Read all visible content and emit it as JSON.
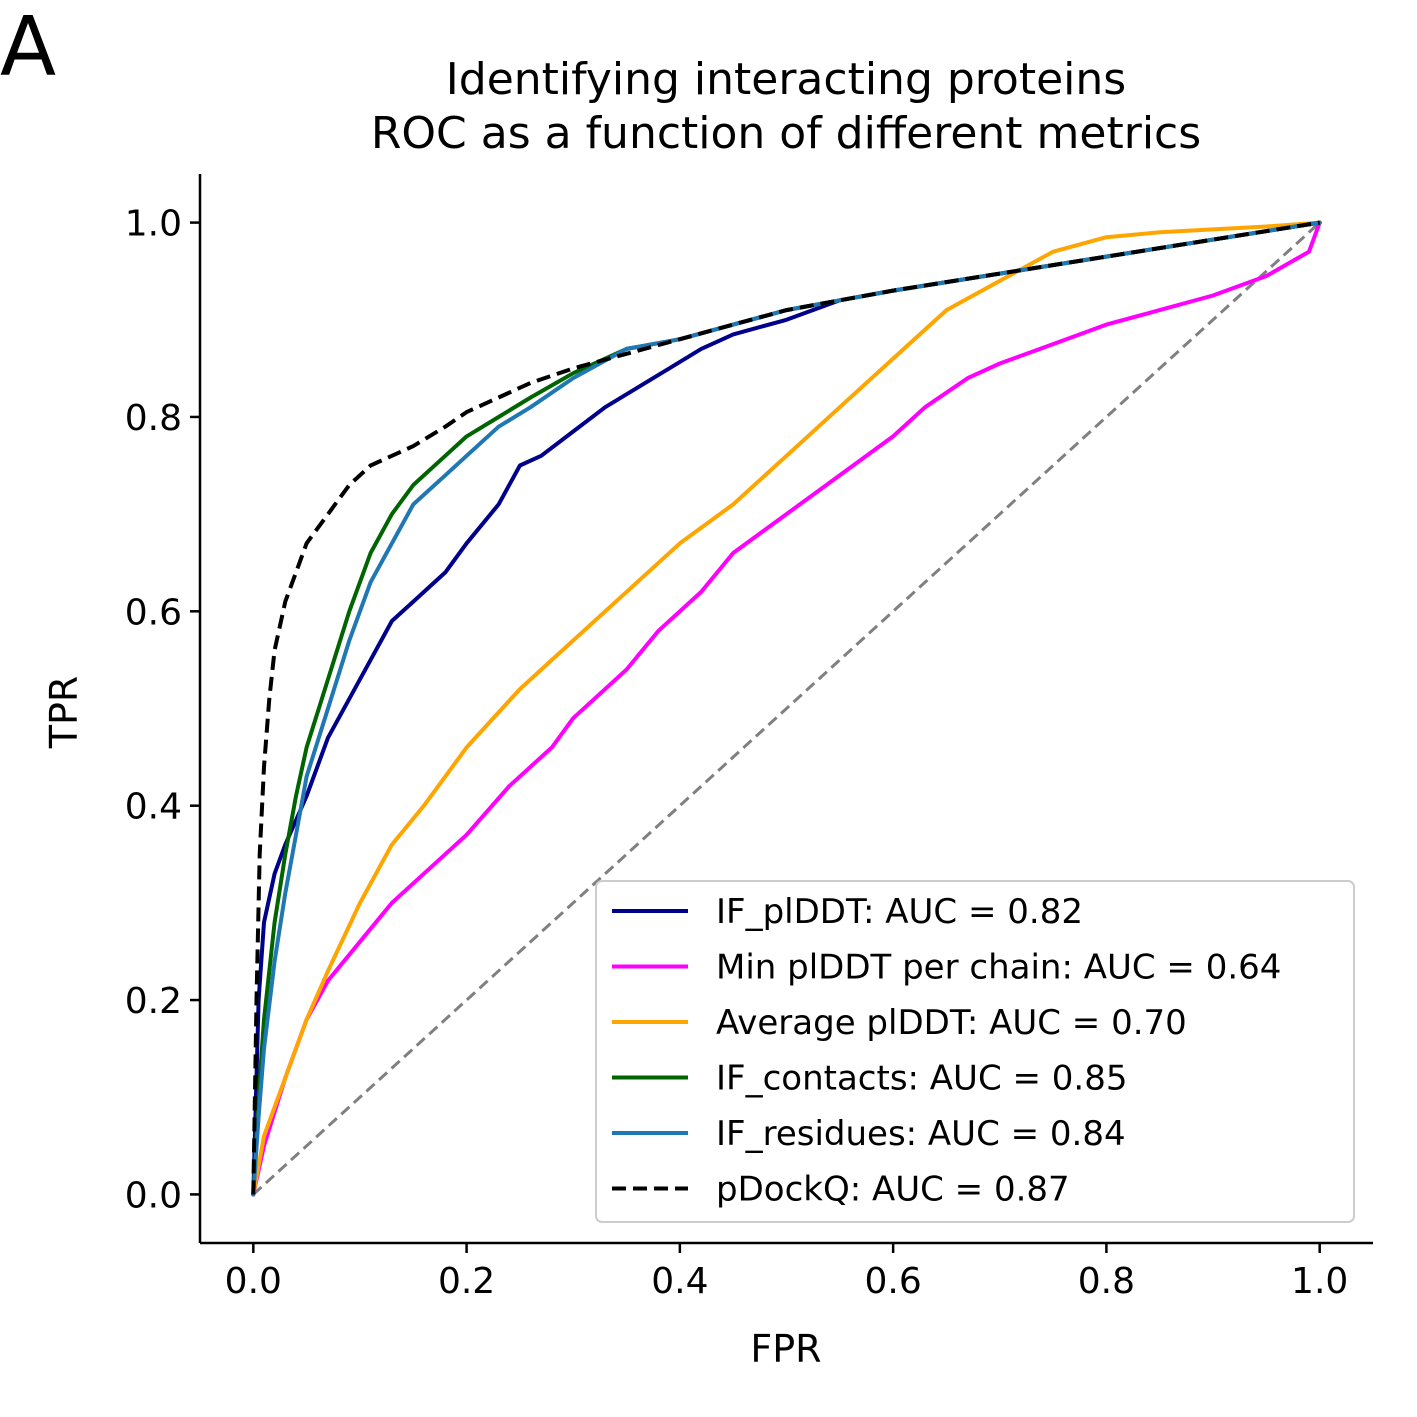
{
  "panel_label": "A",
  "chart_data": {
    "type": "line",
    "title_lines": [
      "Identifying interacting proteins",
      "ROC as a function of different metrics"
    ],
    "xlabel": "FPR",
    "ylabel": "TPR",
    "xlim": [
      -0.05,
      1.05
    ],
    "ylim": [
      -0.05,
      1.05
    ],
    "xticks": [
      0.0,
      0.2,
      0.4,
      0.6,
      0.8,
      1.0
    ],
    "yticks": [
      0.0,
      0.2,
      0.4,
      0.6,
      0.8,
      1.0
    ],
    "xtick_labels": [
      "0.0",
      "0.2",
      "0.4",
      "0.6",
      "0.8",
      "1.0"
    ],
    "ytick_labels": [
      "0.0",
      "0.2",
      "0.4",
      "0.6",
      "0.8",
      "1.0"
    ],
    "grid": false,
    "legend_position": "lower-right",
    "reference_line": {
      "x": [
        0,
        1
      ],
      "y": [
        0,
        1
      ],
      "color": "#808080",
      "style": "dashed"
    },
    "series": [
      {
        "name": "IF_plDDT: AUC = 0.82",
        "color": "#00008b",
        "style": "solid",
        "x": [
          0,
          0.005,
          0.01,
          0.02,
          0.03,
          0.05,
          0.07,
          0.09,
          0.11,
          0.13,
          0.15,
          0.18,
          0.2,
          0.23,
          0.25,
          0.27,
          0.3,
          0.33,
          0.36,
          0.39,
          0.42,
          0.45,
          0.5,
          0.55,
          0.6,
          1.0
        ],
        "y": [
          0,
          0.2,
          0.28,
          0.33,
          0.36,
          0.41,
          0.47,
          0.51,
          0.55,
          0.59,
          0.61,
          0.64,
          0.67,
          0.71,
          0.75,
          0.76,
          0.785,
          0.81,
          0.83,
          0.85,
          0.87,
          0.885,
          0.9,
          0.92,
          0.93,
          1.0
        ]
      },
      {
        "name": "Min plDDT per chain: AUC = 0.64",
        "color": "#ff00ff",
        "style": "solid",
        "x": [
          0,
          0.01,
          0.03,
          0.05,
          0.07,
          0.1,
          0.13,
          0.16,
          0.2,
          0.24,
          0.28,
          0.3,
          0.35,
          0.38,
          0.42,
          0.45,
          0.5,
          0.55,
          0.6,
          0.63,
          0.67,
          0.7,
          0.75,
          0.8,
          0.85,
          0.9,
          0.95,
          0.99,
          1.0
        ],
        "y": [
          0,
          0.05,
          0.12,
          0.18,
          0.22,
          0.26,
          0.3,
          0.33,
          0.37,
          0.42,
          0.46,
          0.49,
          0.54,
          0.58,
          0.62,
          0.66,
          0.7,
          0.74,
          0.78,
          0.81,
          0.84,
          0.855,
          0.875,
          0.895,
          0.91,
          0.925,
          0.945,
          0.97,
          1.0
        ]
      },
      {
        "name": "Average plDDT: AUC = 0.70",
        "color": "#ffa500",
        "style": "solid",
        "x": [
          0,
          0.01,
          0.03,
          0.05,
          0.07,
          0.1,
          0.13,
          0.16,
          0.2,
          0.25,
          0.28,
          0.32,
          0.36,
          0.4,
          0.45,
          0.5,
          0.55,
          0.6,
          0.65,
          0.7,
          0.75,
          0.8,
          0.85,
          0.9,
          0.95,
          1.0
        ],
        "y": [
          0,
          0.06,
          0.12,
          0.18,
          0.23,
          0.3,
          0.36,
          0.4,
          0.46,
          0.52,
          0.55,
          0.59,
          0.63,
          0.67,
          0.71,
          0.76,
          0.81,
          0.86,
          0.91,
          0.94,
          0.97,
          0.985,
          0.99,
          0.993,
          0.996,
          1.0
        ]
      },
      {
        "name": "IF_contacts: AUC = 0.85",
        "color": "#006400",
        "style": "solid",
        "x": [
          0,
          0.005,
          0.01,
          0.02,
          0.03,
          0.04,
          0.05,
          0.07,
          0.09,
          0.11,
          0.13,
          0.15,
          0.18,
          0.2,
          0.23,
          0.26,
          0.3,
          0.35,
          0.4,
          0.45,
          0.5,
          0.55,
          0.6,
          1.0
        ],
        "y": [
          0,
          0.1,
          0.18,
          0.28,
          0.35,
          0.41,
          0.46,
          0.53,
          0.6,
          0.66,
          0.7,
          0.73,
          0.76,
          0.78,
          0.8,
          0.82,
          0.845,
          0.87,
          0.88,
          0.895,
          0.91,
          0.92,
          0.93,
          1.0
        ]
      },
      {
        "name": "IF_residues: AUC = 0.84",
        "color": "#1f77b4",
        "style": "solid",
        "x": [
          0,
          0.005,
          0.01,
          0.02,
          0.03,
          0.04,
          0.05,
          0.07,
          0.09,
          0.11,
          0.13,
          0.15,
          0.18,
          0.2,
          0.23,
          0.26,
          0.3,
          0.35,
          0.4,
          0.45,
          0.5,
          0.55,
          0.6,
          1.0
        ],
        "y": [
          0,
          0.08,
          0.15,
          0.24,
          0.31,
          0.37,
          0.43,
          0.5,
          0.57,
          0.63,
          0.67,
          0.71,
          0.74,
          0.76,
          0.79,
          0.81,
          0.84,
          0.87,
          0.88,
          0.895,
          0.91,
          0.92,
          0.93,
          1.0
        ]
      },
      {
        "name": "pDockQ: AUC = 0.87",
        "color": "#000000",
        "style": "dashed",
        "x": [
          0,
          0.003,
          0.006,
          0.01,
          0.015,
          0.02,
          0.03,
          0.04,
          0.05,
          0.07,
          0.09,
          0.11,
          0.13,
          0.15,
          0.18,
          0.2,
          0.23,
          0.26,
          0.3,
          0.35,
          0.4,
          0.45,
          0.5,
          0.55,
          0.6,
          1.0
        ],
        "y": [
          0,
          0.2,
          0.35,
          0.44,
          0.51,
          0.56,
          0.61,
          0.64,
          0.67,
          0.7,
          0.73,
          0.75,
          0.76,
          0.77,
          0.79,
          0.805,
          0.82,
          0.835,
          0.85,
          0.865,
          0.88,
          0.895,
          0.91,
          0.92,
          0.93,
          1.0
        ]
      }
    ]
  }
}
